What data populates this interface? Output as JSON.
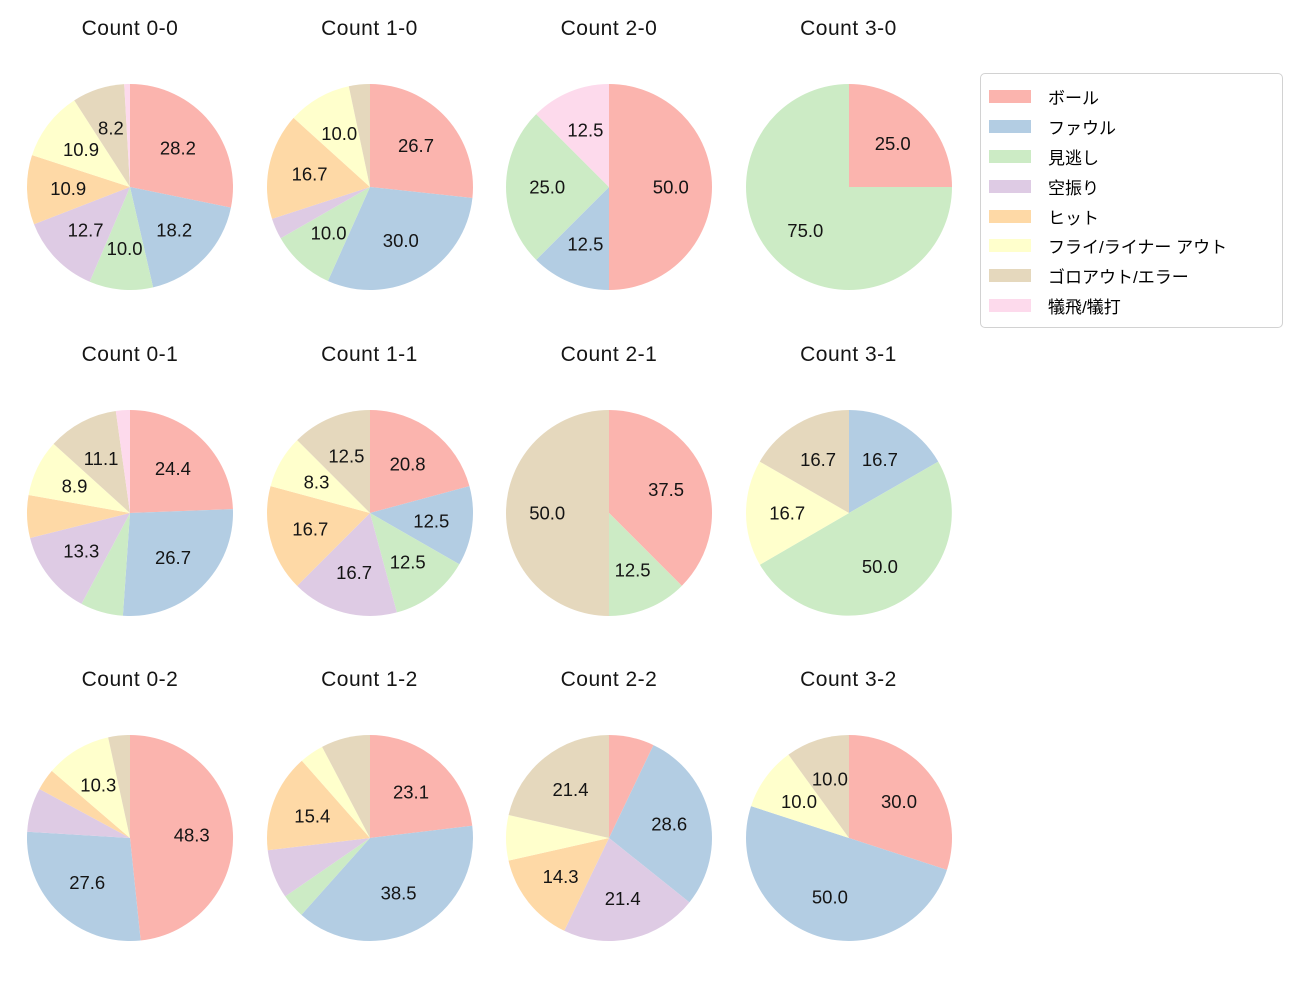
{
  "chart_data": {
    "type": "pie",
    "layout": "grid-4-cols-3-rows",
    "start_angle": "top",
    "direction": "clockwise",
    "percent_label_min": 8.0,
    "percent_label_decimals": 1,
    "legend_position": "top-right",
    "categories": [
      "ボール",
      "ファウル",
      "見逃し",
      "空振り",
      "ヒット",
      "フライ/ライナー アウト",
      "ゴロアウト/エラー",
      "犠飛/犠打"
    ],
    "colors": [
      "#fbb4ae",
      "#b3cde3",
      "#ccebc5",
      "#decbe4",
      "#fed9a6",
      "#ffffcc",
      "#e5d8bd",
      "#fddaec"
    ],
    "pies": [
      {
        "title": "Count 0-0",
        "values": [
          28.2,
          18.2,
          10.0,
          12.7,
          10.9,
          10.9,
          8.2,
          0.9
        ]
      },
      {
        "title": "Count 1-0",
        "values": [
          26.7,
          30.0,
          10.0,
          3.3,
          16.7,
          10.0,
          3.3,
          0
        ]
      },
      {
        "title": "Count 2-0",
        "values": [
          50.0,
          12.5,
          25.0,
          0,
          0,
          0,
          0,
          12.5
        ]
      },
      {
        "title": "Count 3-0",
        "values": [
          25.0,
          0,
          75.0,
          0,
          0,
          0,
          0,
          0
        ]
      },
      {
        "title": "Count 0-1",
        "values": [
          24.4,
          26.7,
          6.7,
          13.3,
          6.7,
          8.9,
          11.1,
          2.2
        ]
      },
      {
        "title": "Count 1-1",
        "values": [
          20.8,
          12.5,
          12.5,
          16.7,
          16.7,
          8.3,
          12.5,
          0
        ]
      },
      {
        "title": "Count 2-1",
        "values": [
          37.5,
          0,
          12.5,
          0,
          0,
          0,
          50.0,
          0
        ]
      },
      {
        "title": "Count 3-1",
        "values": [
          0,
          16.7,
          50.0,
          0,
          0,
          16.7,
          16.7,
          0
        ]
      },
      {
        "title": "Count 0-2",
        "values": [
          48.3,
          27.6,
          0,
          6.9,
          3.4,
          10.3,
          3.4,
          0
        ]
      },
      {
        "title": "Count 1-2",
        "values": [
          23.1,
          38.5,
          3.8,
          7.7,
          15.4,
          3.8,
          7.7,
          0
        ]
      },
      {
        "title": "Count 2-2",
        "values": [
          7.1,
          28.6,
          0,
          21.4,
          14.3,
          7.1,
          21.4,
          0
        ]
      },
      {
        "title": "Count 3-2",
        "values": [
          30.0,
          50.0,
          0,
          0,
          0,
          10.0,
          10.0,
          0
        ]
      }
    ]
  }
}
